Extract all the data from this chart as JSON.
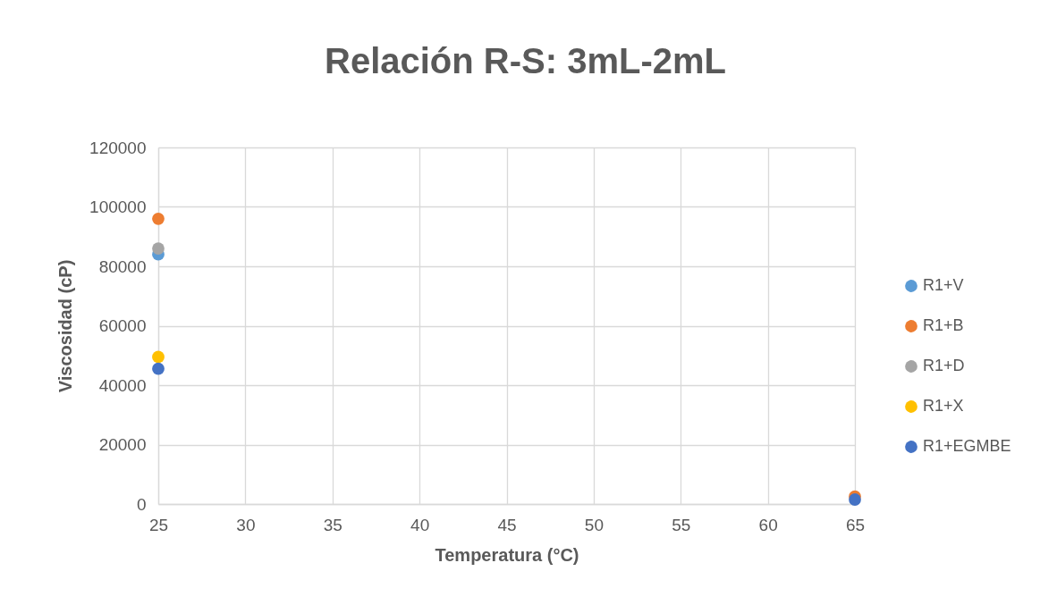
{
  "chart_data": {
    "type": "scatter",
    "title": "Relación R-S: 3mL-2mL",
    "xlabel": "Temperatura (°C)",
    "ylabel": "Viscosidad (cP)",
    "x": [
      25,
      65
    ],
    "series": [
      {
        "name": "R1+V",
        "color": "#5b9bd5",
        "values": [
          84000,
          null
        ]
      },
      {
        "name": "R1+B",
        "color": "#ed7d31",
        "values": [
          96000,
          2500
        ]
      },
      {
        "name": "R1+D",
        "color": "#a5a5a5",
        "values": [
          86000,
          null
        ]
      },
      {
        "name": "R1+X",
        "color": "#ffc000",
        "values": [
          49500,
          null
        ]
      },
      {
        "name": "R1+EGMBE",
        "color": "#4472c4",
        "values": [
          45500,
          1500
        ]
      }
    ],
    "xlim": [
      25,
      65
    ],
    "xticks": [
      25,
      30,
      35,
      40,
      45,
      50,
      55,
      60,
      65
    ],
    "ylim": [
      0,
      120000
    ],
    "yticks": [
      0,
      20000,
      40000,
      60000,
      80000,
      100000,
      120000
    ],
    "grid": true,
    "legend": "right",
    "marker": "circle"
  }
}
